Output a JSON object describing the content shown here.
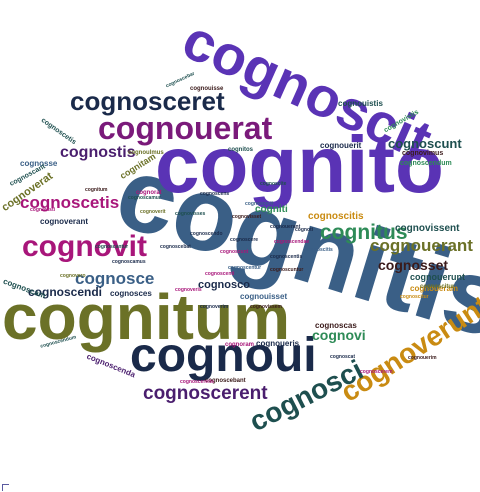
{
  "word_cloud": {
    "words": [
      {
        "text": "cognitis",
        "color": "#3a5f86"
      },
      {
        "text": "cognitum",
        "color": "#6b7127"
      },
      {
        "text": "cognito",
        "color": "#5a33b5"
      },
      {
        "text": "cognoscit",
        "color": "#5a33b5"
      },
      {
        "text": "cognoui",
        "color": "#1a2a4a"
      },
      {
        "text": "cognouerat",
        "color": "#7a1a7a"
      },
      {
        "text": "cognosceret",
        "color": "#1a2a4a"
      },
      {
        "text": "cognoverunt",
        "color": "#c98b12"
      },
      {
        "text": "cognovit",
        "color": "#a8167a"
      },
      {
        "text": "cognosci",
        "color": "#1e4f4f"
      },
      {
        "text": "cognoscerent",
        "color": "#4a1e6e"
      },
      {
        "text": "cognoscetis",
        "color": "#a8167a"
      },
      {
        "text": "cognitus",
        "color": "#2e8b57"
      },
      {
        "text": "cognostis",
        "color": "#4a1e6e"
      },
      {
        "text": "cognoscunt",
        "color": "#1e4f4f"
      },
      {
        "text": "cognouerant",
        "color": "#6b7127"
      },
      {
        "text": "cognosce",
        "color": "#3a5f86"
      },
      {
        "text": "cognosset",
        "color": "#3a1a1a"
      },
      {
        "text": "cognovi",
        "color": "#2e8b57"
      },
      {
        "text": "cognoscendi",
        "color": "#1a2a4a"
      },
      {
        "text": "cognosco",
        "color": "#1a2a4a"
      },
      {
        "text": "cognovissent",
        "color": "#1e4f4f"
      },
      {
        "text": "cognoscitis",
        "color": "#c98b12"
      },
      {
        "text": "cognoueram",
        "color": "#c98b12"
      },
      {
        "text": "cognouerunt",
        "color": "#1e4f4f"
      },
      {
        "text": "cognoverat",
        "color": "#6b7127"
      },
      {
        "text": "cognoscas",
        "color": "#3a1a1a"
      },
      {
        "text": "cognoscenda",
        "color": "#4a1e6e"
      },
      {
        "text": "cognouerit",
        "color": "#1a2a4a"
      },
      {
        "text": "cognouistis",
        "color": "#1e4f4f"
      },
      {
        "text": "cognovistis",
        "color": "#2e8b57"
      },
      {
        "text": "cognoscendum",
        "color": "#2e8b57"
      },
      {
        "text": "cognovimus",
        "color": "#3a1a1a"
      },
      {
        "text": "cognitam",
        "color": "#6b7127"
      },
      {
        "text": "cognosse",
        "color": "#3a5f86"
      },
      {
        "text": "cognoscant",
        "color": "#1e4f4f"
      },
      {
        "text": "cognoscetis",
        "color": "#1e4f4f"
      },
      {
        "text": "cognoverant",
        "color": "#1a2a4a"
      },
      {
        "text": "cognosces",
        "color": "#1a2a4a"
      },
      {
        "text": "cognoscam",
        "color": "#1e4f4f"
      },
      {
        "text": "cognouisse",
        "color": "#3a1a1a"
      },
      {
        "text": "cognoscebar",
        "color": "#1e4f4f"
      },
      {
        "text": "cognoram",
        "color": "#a8167a"
      },
      {
        "text": "cognoueris",
        "color": "#1a2a4a"
      },
      {
        "text": "cognoscebant",
        "color": "#3a1a1a"
      },
      {
        "text": "cognouisset",
        "color": "#3a5f86"
      },
      {
        "text": "cognoscitur",
        "color": "#6b7127"
      },
      {
        "text": "cognouerim",
        "color": "#3a1a1a"
      },
      {
        "text": "cognosceretis",
        "color": "#a8167a"
      },
      {
        "text": "cognoscerem",
        "color": "#a8167a"
      },
      {
        "text": "cognoscendum",
        "color": "#1e4f4f"
      },
      {
        "text": "cognovisti",
        "color": "#a8167a"
      },
      {
        "text": "cognoscat",
        "color": "#1a2a4a"
      },
      {
        "text": "cognoscitur",
        "color": "#c98b12"
      },
      {
        "text": "cognoscentur",
        "color": "#3a5f86"
      },
      {
        "text": "cognitum",
        "color": "#3a1a1a"
      },
      {
        "text": "cognoulmus",
        "color": "#6b7127"
      },
      {
        "text": "cognorat",
        "color": "#a8167a"
      },
      {
        "text": "cognouerant",
        "color": "#1a2a4a"
      },
      {
        "text": "cognoscere",
        "color": "#1a2a4a"
      },
      {
        "text": "cognoscamus",
        "color": "#1a2a4a"
      },
      {
        "text": "cognitos",
        "color": "#1e4f4f"
      },
      {
        "text": "cognoscens",
        "color": "#1a2a4a"
      },
      {
        "text": "cognoscuntur",
        "color": "#3a1a1a"
      },
      {
        "text": "cognoscantur",
        "color": "#1e4f4f"
      },
      {
        "text": "cognoscendo",
        "color": "#1a2a4a"
      },
      {
        "text": "cognoscendae",
        "color": "#a8167a"
      },
      {
        "text": "cognoscenti",
        "color": "#a8167a"
      },
      {
        "text": "cognoscentis",
        "color": "#1a2a4a"
      },
      {
        "text": "cognoscerit",
        "color": "#3a5f86"
      },
      {
        "text": "cognoscite",
        "color": "#1e4f4f"
      },
      {
        "text": "cognovisset",
        "color": "#3a1a1a"
      },
      {
        "text": "cognoti",
        "color": "#1a2a4a"
      },
      {
        "text": "cognovero",
        "color": "#6b7127"
      },
      {
        "text": "cognoverim",
        "color": "#1a2a4a"
      },
      {
        "text": "cognoveris",
        "color": "#a8167a"
      },
      {
        "text": "cognovissem",
        "color": "#3a1a1a"
      },
      {
        "text": "cognovisses",
        "color": "#1e4f4f"
      },
      {
        "text": "cognoverit",
        "color": "#6b7127"
      },
      {
        "text": "cognoscunt",
        "color": "#a8167a"
      },
      {
        "text": "cognoscebat",
        "color": "#1a2a4a"
      },
      {
        "text": "cognoscitis",
        "color": "#3a5f86"
      },
      {
        "text": "cogniti",
        "color": "#2e8b57"
      },
      {
        "text": "cognoscamur",
        "color": "#1e4f4f"
      }
    ]
  }
}
